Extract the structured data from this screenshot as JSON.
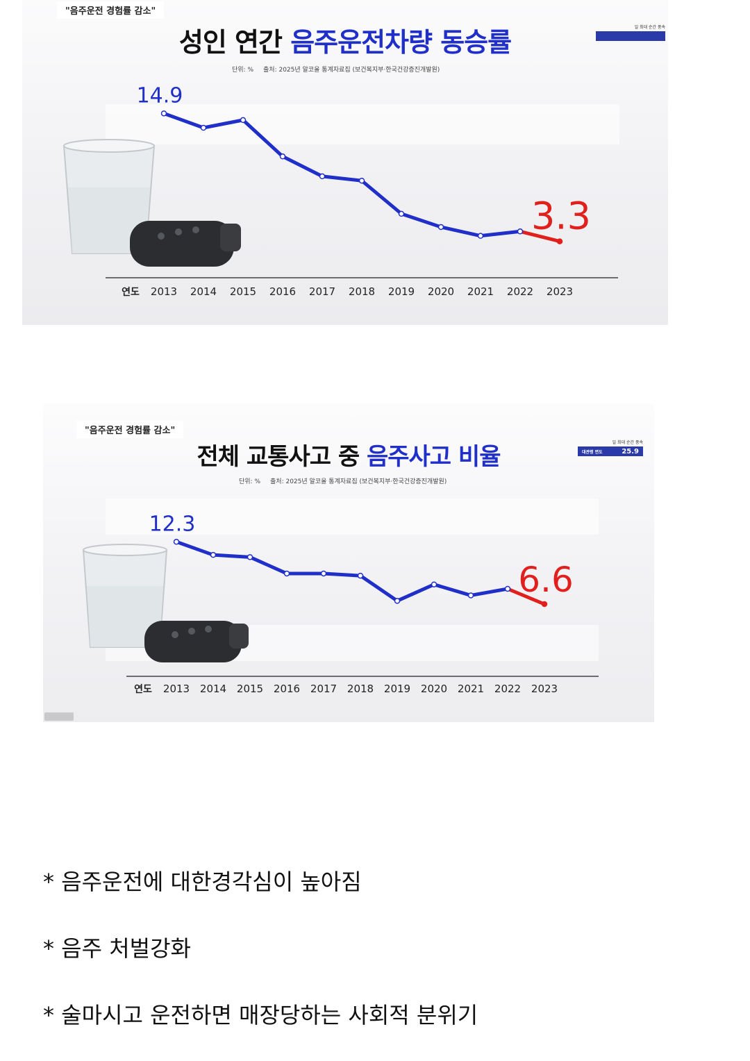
{
  "panels": [
    {
      "tagline": "\"음주운전 경험률 감소\"",
      "title_plain": "성인 연간 ",
      "title_highlight": "음주운전차량 동승률",
      "unit": "단위: %",
      "source": "출처: 2025년 알코올 통계자료집 (보건복지부·한국건강증진개발원)",
      "badge_top": "일 최대 순간 풍속",
      "badge_label": "",
      "badge_value": ""
    },
    {
      "tagline": "\"음주운전 경험률 감소\"",
      "title_plain": "전체 교통사고 중 ",
      "title_highlight": "음주사고 비율",
      "unit": "단위: %",
      "source": "출처: 2025년 알코올 통계자료집 (보건복지부·한국건강증진개발원)",
      "badge_top": "일 최대 순간 풍속",
      "badge_label": "대관령 면도",
      "badge_value": "25.9"
    }
  ],
  "chart_data": [
    {
      "type": "line",
      "title": "성인 연간 음주운전차량 동승률",
      "xlabel": "연도",
      "ylabel": "단위: %",
      "x": [
        "2013",
        "2014",
        "2015",
        "2016",
        "2017",
        "2018",
        "2019",
        "2020",
        "2021",
        "2022",
        "2023"
      ],
      "series": [
        {
          "values": [
            14.9,
            13.6,
            14.3,
            11.0,
            9.2,
            8.8,
            5.8,
            4.6,
            3.8,
            4.2,
            3.3
          ]
        }
      ],
      "labels": {
        "first": "14.9",
        "last": "3.3"
      },
      "ylim": [
        0,
        17
      ],
      "colors": {
        "line": "#1f2fc8",
        "last_segment": "#e0201c",
        "first_label": "#1f2fc8",
        "last_label": "#e0201c"
      },
      "grid": false,
      "legend": "none"
    },
    {
      "type": "line",
      "title": "전체 교통사고 중 음주사고 비율",
      "xlabel": "연도",
      "ylabel": "단위: %",
      "x": [
        "2013",
        "2014",
        "2015",
        "2016",
        "2017",
        "2018",
        "2019",
        "2020",
        "2021",
        "2022",
        "2023"
      ],
      "series": [
        {
          "values": [
            12.3,
            11.1,
            10.9,
            9.4,
            9.4,
            9.2,
            6.9,
            8.4,
            7.4,
            8.0,
            6.6
          ]
        }
      ],
      "labels": {
        "first": "12.3",
        "last": "6.6"
      },
      "ylim": [
        0,
        16
      ],
      "colors": {
        "line": "#1f2fc8",
        "last_segment": "#e0201c",
        "first_label": "#1f2fc8",
        "last_label": "#e0201c"
      },
      "grid": false,
      "legend": "none"
    }
  ],
  "notes": [
    "* 음주운전에 대한경각심이 높아짐",
    "* 음주 처벌강화",
    "* 술마시고 운전하면 매장당하는 사회적 분위기"
  ]
}
